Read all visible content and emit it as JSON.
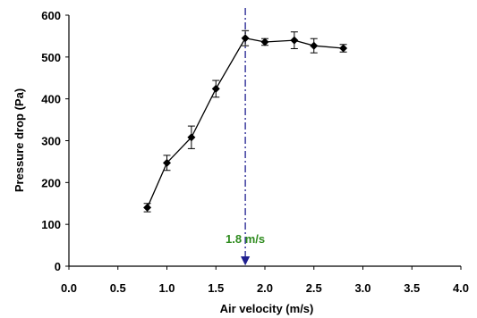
{
  "chart_data": {
    "type": "scatter",
    "xlabel": "Air velocity (m/s)",
    "ylabel": "Pressure drop (Pa)",
    "xlim": [
      0.0,
      4.0
    ],
    "ylim": [
      0,
      600
    ],
    "x_ticks": [
      "0.0",
      "0.5",
      "1.0",
      "1.5",
      "2.0",
      "2.5",
      "3.0",
      "3.5",
      "4.0"
    ],
    "y_ticks": [
      "0",
      "100",
      "200",
      "300",
      "400",
      "500",
      "600"
    ],
    "grid": false,
    "series": [
      {
        "marker": "diamond",
        "line": true,
        "color": "#000000",
        "points": [
          {
            "x": 0.8,
            "y": 140,
            "err": 10
          },
          {
            "x": 1.0,
            "y": 247,
            "err": 18
          },
          {
            "x": 1.25,
            "y": 308,
            "err": 27
          },
          {
            "x": 1.5,
            "y": 424,
            "err": 20
          },
          {
            "x": 1.8,
            "y": 545,
            "err": 18
          },
          {
            "x": 2.0,
            "y": 536,
            "err": 8
          },
          {
            "x": 2.3,
            "y": 540,
            "err": 20
          },
          {
            "x": 2.5,
            "y": 527,
            "err": 17
          },
          {
            "x": 2.8,
            "y": 521,
            "err": 9
          }
        ]
      }
    ],
    "reference_line": {
      "x": 1.8,
      "style": "dash-dot",
      "color": "#1f1f8f",
      "label": "1.8 m/s",
      "label_color": "#2e8b1e"
    }
  }
}
